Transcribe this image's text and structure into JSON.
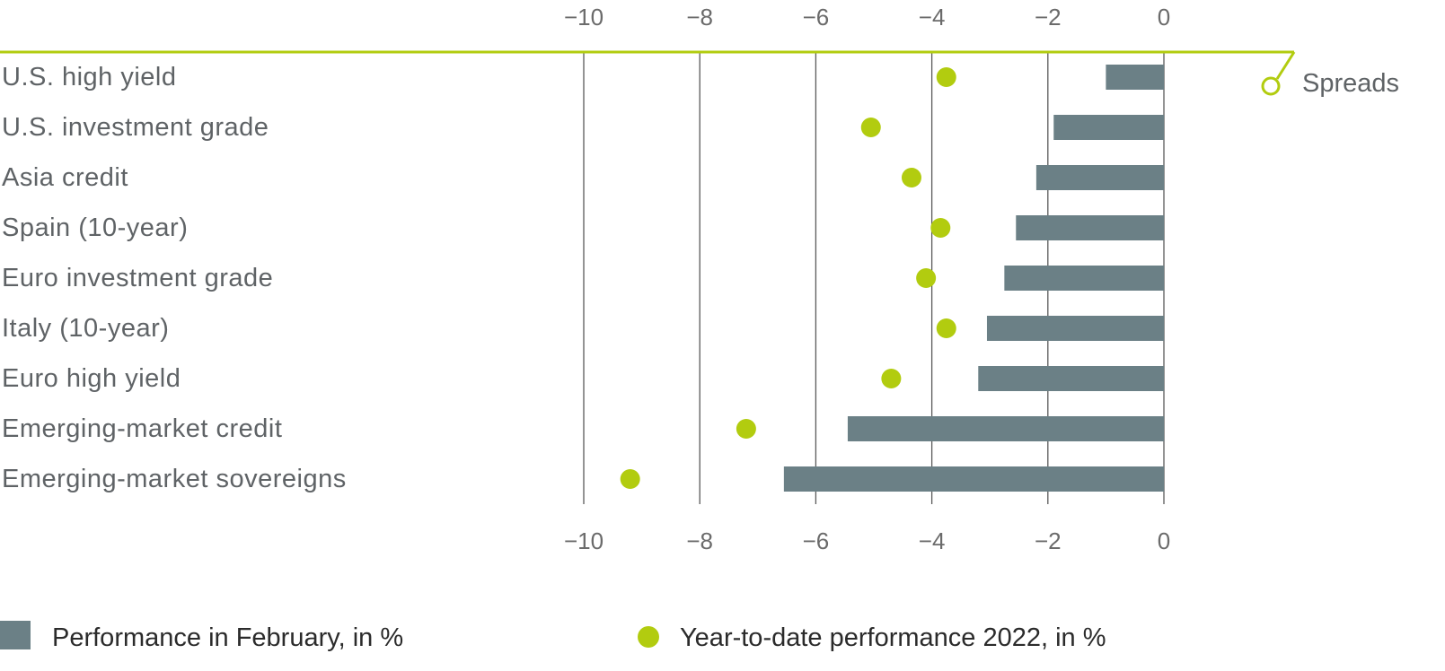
{
  "colors": {
    "bar": "#6b8086",
    "dot": "#b2cc0f",
    "accent_line": "#b2cc0f",
    "grid": "#5a5a5a",
    "text": "#5f6366"
  },
  "annotation": {
    "label": "Spreads"
  },
  "legend": {
    "bar_label": "Performance in February, in %",
    "dot_label": "Year-to-date performance 2022, in %"
  },
  "chart_data": {
    "type": "bar",
    "orientation": "horizontal",
    "xlim": [
      -10,
      0
    ],
    "xticks": [
      -10,
      -8,
      -6,
      -4,
      -2,
      0
    ],
    "xtick_labels": [
      "−10",
      "−8",
      "−6",
      "−4",
      "−2",
      "0"
    ],
    "grid": true,
    "legend_position": "bottom",
    "categories": [
      "U.S. high yield",
      "U.S. investment grade",
      "Asia credit",
      "Spain (10-year)",
      "Euro investment grade",
      "Italy (10-year)",
      "Euro high yield",
      "Emerging-market credit",
      "Emerging-market sovereigns"
    ],
    "series": [
      {
        "name": "Performance in February, in %",
        "type": "bar",
        "values": [
          -1.0,
          -1.9,
          -2.2,
          -2.55,
          -2.75,
          -3.05,
          -3.2,
          -5.45,
          -6.55
        ]
      },
      {
        "name": "Year-to-date performance 2022, in %",
        "type": "scatter",
        "values": [
          -3.75,
          -5.05,
          -4.35,
          -3.85,
          -4.1,
          -3.75,
          -4.7,
          -7.2,
          -9.2
        ]
      }
    ]
  }
}
